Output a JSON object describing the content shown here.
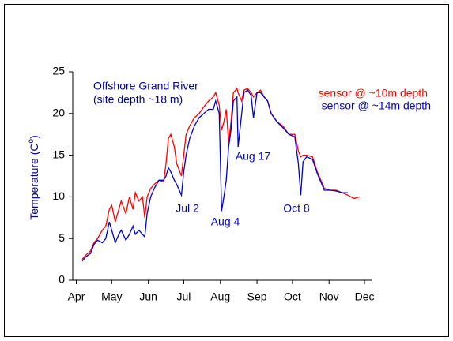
{
  "chart_data": {
    "type": "line",
    "title": "Offshore Grand River",
    "subtitle": "(site depth ~18 m)",
    "y_label": "Temperature (C",
    "y_label_sup": "o",
    "y_label_end": ")",
    "x": [
      5,
      8,
      12,
      15,
      18,
      22,
      25,
      28,
      30,
      33,
      36,
      38,
      42,
      45,
      48,
      50,
      53,
      56,
      58,
      60,
      63,
      66,
      70,
      74,
      76,
      78,
      80,
      83,
      85,
      89,
      91,
      93,
      96,
      100,
      104,
      108,
      112,
      116,
      118,
      121,
      123,
      125,
      127,
      129,
      131,
      133,
      136,
      137,
      140,
      142,
      145,
      148,
      150,
      153,
      156,
      159,
      162,
      165,
      170,
      175,
      180,
      185,
      188,
      190,
      192,
      195,
      200,
      204,
      207,
      210,
      215,
      220,
      225,
      230,
      235,
      240
    ],
    "series": [
      {
        "name": "sensor @ ~10m depth",
        "color": "#ff0000",
        "values": [
          2.5,
          3,
          3.5,
          4.5,
          5,
          6,
          6.5,
          8.5,
          9,
          7,
          8.5,
          9.5,
          8,
          10,
          8.5,
          10.5,
          9.5,
          10,
          7.5,
          10,
          11,
          11.5,
          12,
          11.8,
          14,
          17,
          17.5,
          16,
          14,
          12.5,
          15,
          17.5,
          18.5,
          19.5,
          20,
          20.8,
          21.5,
          22,
          22.5,
          21,
          18,
          19,
          20.5,
          16.5,
          19,
          22.5,
          23,
          22.5,
          21.5,
          22.8,
          23,
          22.5,
          22,
          22.5,
          22.8,
          22,
          21.5,
          20,
          19,
          18.5,
          17.5,
          17.5,
          15.5,
          14.8,
          15,
          15,
          14.8,
          13,
          12,
          11,
          10.8,
          10.8,
          10.5,
          10.2,
          9.8,
          10
        ]
      },
      {
        "name": "sensor @ ~14m depth",
        "color": "#0000cc",
        "values": [
          2.3,
          2.8,
          3.2,
          4.3,
          4.8,
          4.5,
          5,
          7,
          6,
          4.5,
          5.5,
          6,
          4.8,
          5.5,
          6.5,
          5.5,
          6,
          5.5,
          5.2,
          8,
          10,
          11,
          12,
          12,
          12.5,
          13.5,
          13,
          12,
          11.5,
          10.2,
          13,
          15,
          17,
          18.5,
          19.5,
          20,
          20.5,
          20.5,
          21.5,
          20,
          8.3,
          10,
          12,
          16,
          18,
          21.5,
          22,
          16,
          20,
          22.5,
          22.8,
          22.2,
          19.5,
          22.5,
          22.5,
          22,
          21.5,
          20,
          19,
          18.3,
          17.5,
          17.2,
          14,
          10.2,
          14.2,
          14.8,
          14.5,
          12.8,
          11.8,
          10.8,
          10.8,
          10.7,
          10.5,
          10.5,
          null,
          null
        ]
      }
    ],
    "annotations": [
      "Jul 2",
      "Aug 4",
      "Aug 17",
      "Oct 8"
    ],
    "xlim": [
      -3,
      250
    ],
    "xticks": [
      {
        "value": 0,
        "label": "Apr"
      },
      {
        "value": 30,
        "label": "May"
      },
      {
        "value": 61,
        "label": "Jun"
      },
      {
        "value": 91,
        "label": "Jul"
      },
      {
        "value": 122,
        "label": "Aug"
      },
      {
        "value": 153,
        "label": "Sep"
      },
      {
        "value": 183,
        "label": "Oct"
      },
      {
        "value": 214,
        "label": "Nov"
      },
      {
        "value": 244,
        "label": "Dec"
      }
    ],
    "ylim": [
      0,
      25
    ],
    "yticks": [
      0,
      5,
      10,
      15,
      20,
      25
    ],
    "grid": false
  }
}
